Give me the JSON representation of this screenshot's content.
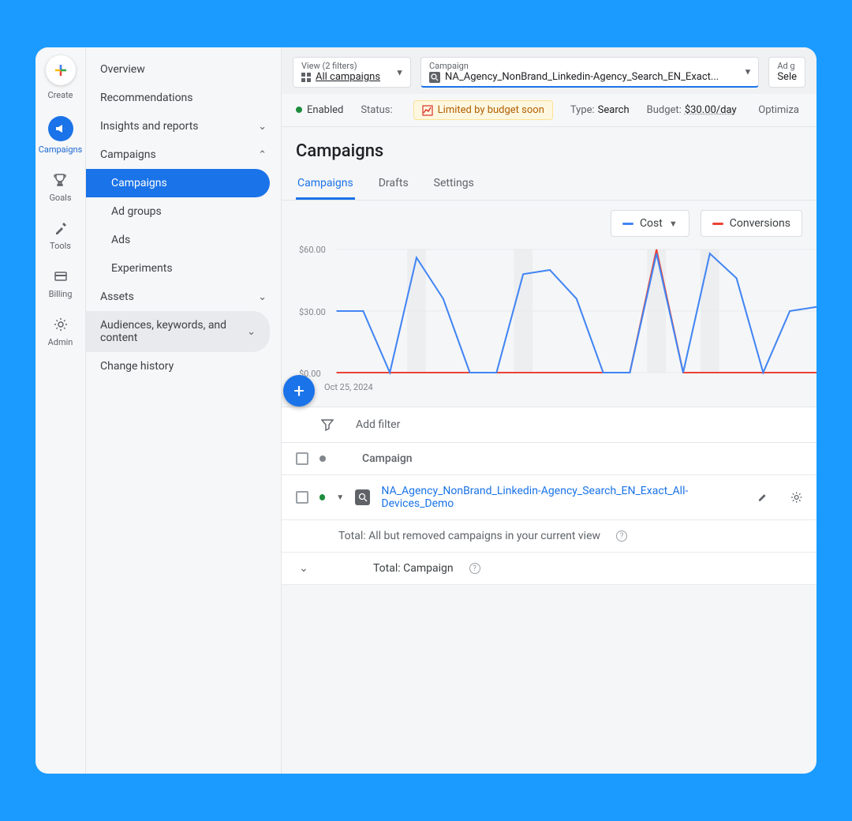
{
  "colors": {
    "primary": "#1a73e8",
    "cost": "#4285f4",
    "conversions": "#ea4335",
    "grid": "#eceef0",
    "bg_outer": "#1b9bff",
    "green": "#1e8e3e"
  },
  "rail": {
    "create": "Create",
    "campaigns": "Campaigns",
    "goals": "Goals",
    "tools": "Tools",
    "billing": "Billing",
    "admin": "Admin"
  },
  "sidebar": {
    "overview": "Overview",
    "recommendations": "Recommendations",
    "insights": "Insights and reports",
    "campaigns": "Campaigns",
    "campaigns_sub": "Campaigns",
    "adgroups": "Ad groups",
    "ads": "Ads",
    "experiments": "Experiments",
    "assets": "Assets",
    "audiences": "Audiences, keywords, and content",
    "changehistory": "Change history"
  },
  "topbar": {
    "view_lbl": "View (2 filters)",
    "view_val": "All campaigns",
    "campaign_lbl": "Campaign",
    "campaign_val": "NA_Agency_NonBrand_Linkedin-Agency_Search_EN_Exact...",
    "adgroup_lbl": "Ad g",
    "adgroup_val": "Sele"
  },
  "status": {
    "enabled": "Enabled",
    "status_lbl": "Status:",
    "status_val": "Limited by budget soon",
    "type_lbl": "Type:",
    "type_val": "Search",
    "budget_lbl": "Budget:",
    "budget_val": "$30.00/day",
    "opt_lbl": "Optimiza"
  },
  "page": {
    "title": "Campaigns"
  },
  "tabs": {
    "campaigns": "Campaigns",
    "drafts": "Drafts",
    "settings": "Settings"
  },
  "metrics": {
    "cost": "Cost",
    "conversions": "Conversions"
  },
  "chart": {
    "ylabels": {
      "top": "$60.00",
      "mid": "$30.00",
      "bot": "$0.00"
    },
    "xlabel": "Oct 25, 2024",
    "cost_points": [
      30,
      30,
      0,
      56,
      36,
      0,
      0,
      48,
      50,
      36,
      0,
      0,
      58,
      0,
      58,
      46,
      0,
      30,
      32
    ],
    "conv_points": [
      0,
      0,
      0,
      0,
      0,
      0,
      0,
      0,
      0,
      0,
      0,
      0,
      60,
      0,
      0,
      0,
      0,
      0,
      0
    ],
    "ymax": 60,
    "band_indices": [
      3,
      7,
      12,
      14
    ],
    "line_width": 2.0
  },
  "filter": {
    "add": "Add filter"
  },
  "table": {
    "col_campaign": "Campaign",
    "row_name": "NA_Agency_NonBrand_Linkedin-Agency_Search_EN_Exact_All-Devices_Demo",
    "total_all": "Total: All but removed campaigns in your current view",
    "total_campaign": "Total: Campaign"
  }
}
